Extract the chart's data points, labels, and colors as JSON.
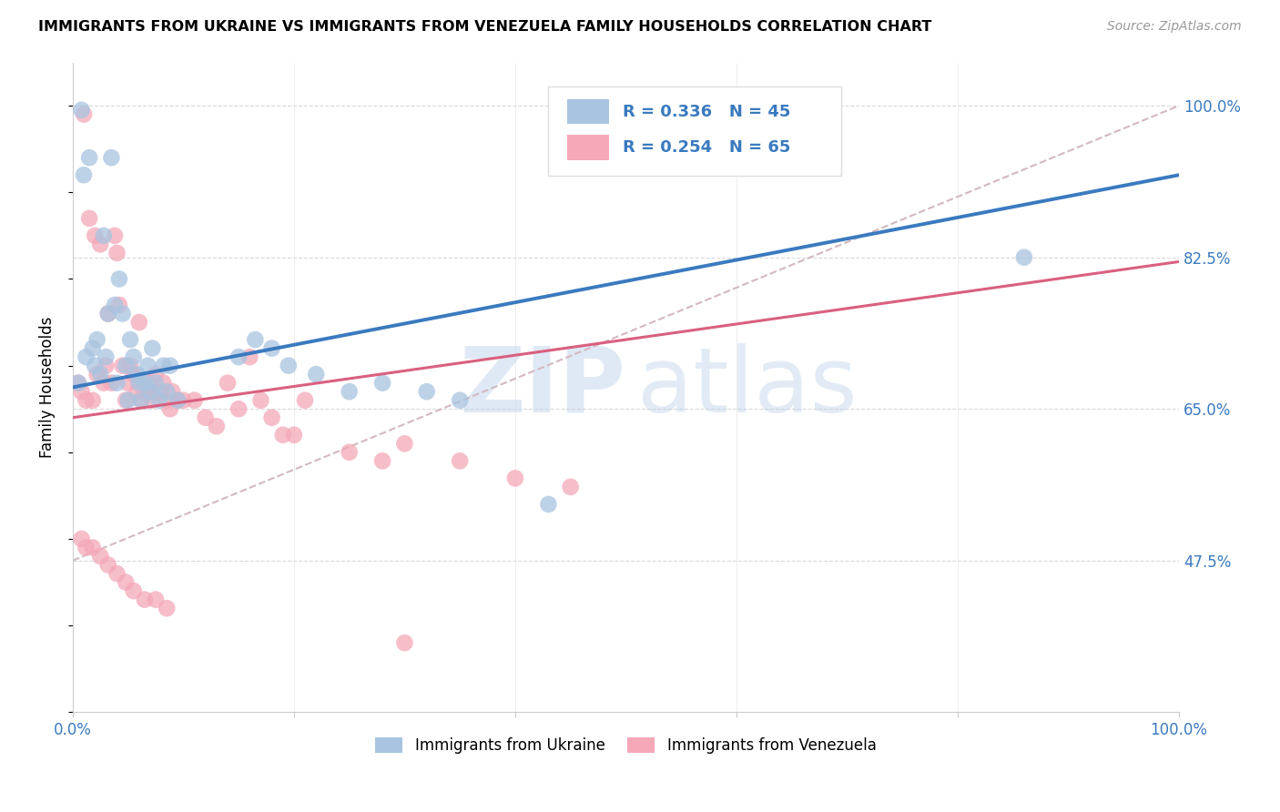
{
  "title": "IMMIGRANTS FROM UKRAINE VS IMMIGRANTS FROM VENEZUELA FAMILY HOUSEHOLDS CORRELATION CHART",
  "source_text": "Source: ZipAtlas.com",
  "ylabel": "Family Households",
  "x_min": 0.0,
  "x_max": 1.0,
  "y_min": 0.3,
  "y_max": 1.05,
  "y_tick_labels": [
    "100.0%",
    "82.5%",
    "65.0%",
    "47.5%"
  ],
  "y_tick_values": [
    1.0,
    0.825,
    0.65,
    0.475
  ],
  "ukraine_color": "#a8c4e0",
  "venezuela_color": "#f4a8b8",
  "ukraine_line_color": "#3a7abf",
  "venezuela_line_color": "#d96080",
  "reference_line_color": "#d4b8c0",
  "R_ukraine": 0.336,
  "N_ukraine": 45,
  "R_venezuela": 0.254,
  "N_venezuela": 65,
  "ukraine_scatter_x": [
    0.005,
    0.008,
    0.01,
    0.012,
    0.015,
    0.018,
    0.02,
    0.022,
    0.025,
    0.028,
    0.03,
    0.032,
    0.035,
    0.038,
    0.04,
    0.042,
    0.045,
    0.048,
    0.05,
    0.052,
    0.055,
    0.058,
    0.06,
    0.062,
    0.065,
    0.068,
    0.07,
    0.072,
    0.075,
    0.078,
    0.082,
    0.085,
    0.088,
    0.15,
    0.165,
    0.18,
    0.195,
    0.22,
    0.25,
    0.28,
    0.32,
    0.35,
    0.43,
    0.86,
    0.095
  ],
  "ukraine_scatter_y": [
    0.68,
    0.995,
    0.92,
    0.71,
    0.94,
    0.72,
    0.7,
    0.73,
    0.69,
    0.85,
    0.71,
    0.76,
    0.94,
    0.77,
    0.68,
    0.8,
    0.76,
    0.7,
    0.66,
    0.73,
    0.71,
    0.69,
    0.68,
    0.66,
    0.68,
    0.7,
    0.67,
    0.72,
    0.68,
    0.66,
    0.7,
    0.67,
    0.7,
    0.71,
    0.73,
    0.72,
    0.7,
    0.69,
    0.67,
    0.68,
    0.67,
    0.66,
    0.54,
    0.825,
    0.66
  ],
  "venezuela_scatter_x": [
    0.005,
    0.008,
    0.01,
    0.012,
    0.015,
    0.018,
    0.02,
    0.022,
    0.025,
    0.028,
    0.03,
    0.032,
    0.035,
    0.038,
    0.04,
    0.042,
    0.045,
    0.048,
    0.05,
    0.052,
    0.055,
    0.058,
    0.06,
    0.062,
    0.065,
    0.068,
    0.07,
    0.072,
    0.075,
    0.078,
    0.082,
    0.085,
    0.088,
    0.09,
    0.095,
    0.1,
    0.11,
    0.12,
    0.13,
    0.14,
    0.15,
    0.16,
    0.17,
    0.18,
    0.19,
    0.2,
    0.21,
    0.25,
    0.28,
    0.3,
    0.35,
    0.4,
    0.45,
    0.3,
    0.008,
    0.012,
    0.018,
    0.025,
    0.032,
    0.04,
    0.048,
    0.055,
    0.065,
    0.075,
    0.085
  ],
  "venezuela_scatter_y": [
    0.68,
    0.67,
    0.99,
    0.66,
    0.87,
    0.66,
    0.85,
    0.69,
    0.84,
    0.68,
    0.7,
    0.76,
    0.68,
    0.85,
    0.83,
    0.77,
    0.7,
    0.66,
    0.68,
    0.7,
    0.69,
    0.67,
    0.75,
    0.66,
    0.67,
    0.68,
    0.67,
    0.66,
    0.69,
    0.67,
    0.68,
    0.66,
    0.65,
    0.67,
    0.66,
    0.66,
    0.66,
    0.64,
    0.63,
    0.68,
    0.65,
    0.71,
    0.66,
    0.64,
    0.62,
    0.62,
    0.66,
    0.6,
    0.59,
    0.61,
    0.59,
    0.57,
    0.56,
    0.38,
    0.5,
    0.49,
    0.49,
    0.48,
    0.47,
    0.46,
    0.45,
    0.44,
    0.43,
    0.43,
    0.42
  ]
}
